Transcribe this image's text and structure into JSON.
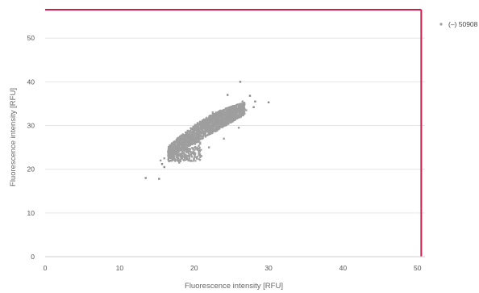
{
  "chart_data": {
    "type": "scatter",
    "title": "",
    "xlabel": "Fluorescence intensity [RFU]",
    "ylabel": "Fluorescence intensity [RFU]",
    "xlim": [
      0,
      51
    ],
    "ylim": [
      0,
      56.5
    ],
    "x_ticks": [
      "0",
      "10",
      "20",
      "30",
      "40",
      "50"
    ],
    "y_ticks": [
      "0",
      "10",
      "20",
      "30",
      "40",
      "50"
    ],
    "grid": "horizontal",
    "legend_position": "top-right",
    "threshold": {
      "x": 50.5,
      "y": 56.5,
      "color": "#cc1f4e"
    },
    "series": [
      {
        "name": "(–) 50908",
        "color": "#9e9e9e",
        "cluster": {
          "description_points": [
            [
              15.5,
              22.0
            ],
            [
              16.0,
              22.5
            ],
            [
              17.0,
              23.5
            ],
            [
              18.0,
              24.5
            ],
            [
              19.0,
              25.0
            ],
            [
              20.0,
              26.5
            ],
            [
              21.0,
              27.5
            ],
            [
              22.0,
              28.5
            ],
            [
              23.0,
              29.5
            ],
            [
              24.0,
              30.5
            ],
            [
              25.0,
              31.5
            ],
            [
              26.0,
              32.5
            ],
            [
              27.0,
              33.5
            ],
            [
              20.0,
              23.5
            ],
            [
              22.0,
              25.0
            ],
            [
              24.0,
              27.0
            ],
            [
              26.0,
              29.5
            ],
            [
              19.0,
              28.0
            ],
            [
              21.0,
              30.5
            ],
            [
              23.0,
              32.0
            ],
            [
              25.0,
              34.0
            ],
            [
              26.5,
              35.5
            ],
            [
              16.5,
              24.0
            ],
            [
              18.0,
              21.5
            ],
            [
              22.5,
              33.0
            ]
          ]
        },
        "outliers": [
          [
            13.5,
            18.0
          ],
          [
            15.3,
            17.8
          ],
          [
            26.2,
            40.0
          ],
          [
            28.2,
            35.5
          ],
          [
            30.0,
            35.3
          ],
          [
            16.0,
            20.5
          ],
          [
            27.5,
            36.8
          ],
          [
            15.7,
            21.2
          ],
          [
            28.0,
            34.2
          ],
          [
            24.5,
            37.0
          ]
        ]
      }
    ]
  }
}
